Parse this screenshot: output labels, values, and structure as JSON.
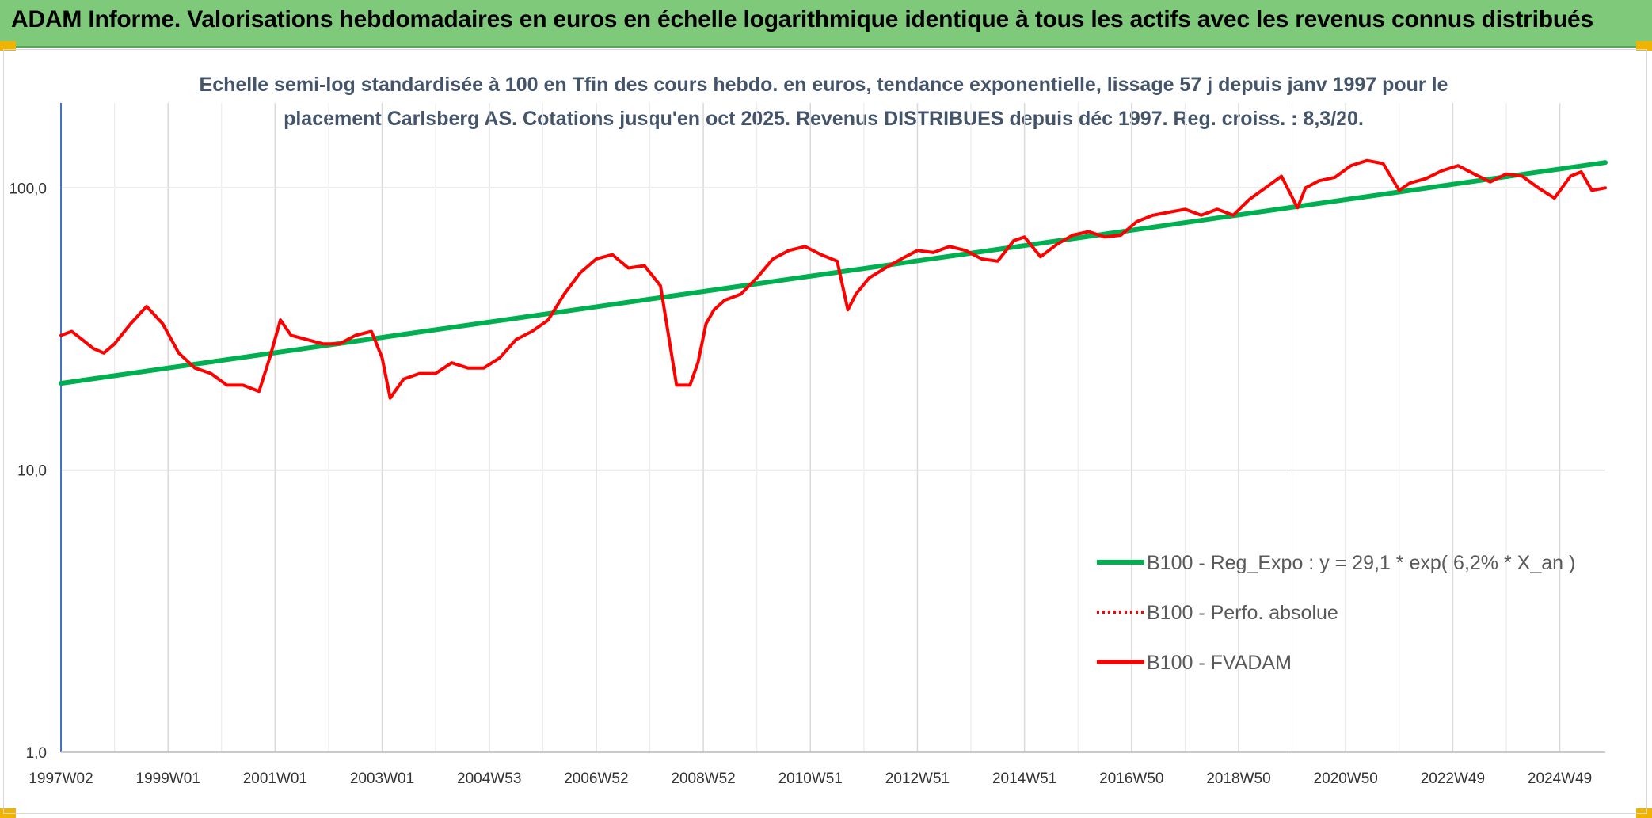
{
  "banner": {
    "title": "ADAM Informe. Valorisations hebdomadaires en euros en échelle logarithmique identique à tous les actifs avec les revenus connus distribués"
  },
  "colors": {
    "banner_bg": "#7fc97a",
    "trend": "#00b050",
    "series": "#ff0000",
    "grid": "#d9d9d9",
    "axis": "#4472c4"
  },
  "chart_data": {
    "type": "line",
    "title_lines": [
      "Echelle semi-log standardisée à 100 en Tfin des cours hebdo. en euros, tendance exponentielle, lissage 57 j depuis janv 1997 pour le",
      "placement Carlsberg AS. Cotations jusqu'en oct 2025. Revenus DISTRIBUES depuis déc 1997. Reg. croiss. : 8,3/20."
    ],
    "y_scale": "log",
    "ylim": [
      1,
      200
    ],
    "y_ticks": [
      {
        "value": 1,
        "label": "1,0"
      },
      {
        "value": 10,
        "label": "10,0"
      },
      {
        "value": 100,
        "label": "100,0"
      }
    ],
    "x_range": [
      1997.0,
      2025.85
    ],
    "x_ticks": [
      {
        "x": 1997.0,
        "label": "1997W02"
      },
      {
        "x": 1999.0,
        "label": "1999W01"
      },
      {
        "x": 2001.0,
        "label": "2001W01"
      },
      {
        "x": 2003.0,
        "label": "2003W01"
      },
      {
        "x": 2005.0,
        "label": "2004W53"
      },
      {
        "x": 2007.0,
        "label": "2006W52"
      },
      {
        "x": 2009.0,
        "label": "2008W52"
      },
      {
        "x": 2011.0,
        "label": "2010W51"
      },
      {
        "x": 2013.0,
        "label": "2012W51"
      },
      {
        "x": 2015.0,
        "label": "2014W51"
      },
      {
        "x": 2017.0,
        "label": "2016W50"
      },
      {
        "x": 2019.0,
        "label": "2018W50"
      },
      {
        "x": 2021.0,
        "label": "2020W50"
      },
      {
        "x": 2023.0,
        "label": "2022W49"
      },
      {
        "x": 2025.0,
        "label": "2024W49"
      }
    ],
    "legend_position": "right",
    "series": [
      {
        "name": "B100 - Reg_Expo : y = 29,1 * exp( 6,2% *  X_an )",
        "style": "solid-thick",
        "color": "#00b050",
        "x": [
          1997.0,
          2025.85
        ],
        "y": [
          20.3,
          123.0
        ]
      },
      {
        "name": "B100 - Perfo. absolue",
        "style": "dotted",
        "color": "#ff0000",
        "x": [],
        "y": []
      },
      {
        "name": "B100 - FVADAM",
        "style": "solid",
        "color": "#ff0000",
        "x": [
          1997.0,
          1997.2,
          1997.4,
          1997.6,
          1997.8,
          1998.0,
          1998.3,
          1998.6,
          1998.9,
          1999.2,
          1999.5,
          1999.8,
          2000.1,
          2000.4,
          2000.7,
          2000.9,
          2001.1,
          2001.3,
          2001.6,
          2001.9,
          2002.2,
          2002.5,
          2002.8,
          2003.0,
          2003.15,
          2003.4,
          2003.7,
          2004.0,
          2004.3,
          2004.6,
          2004.9,
          2005.2,
          2005.5,
          2005.8,
          2006.1,
          2006.4,
          2006.7,
          2007.0,
          2007.3,
          2007.6,
          2007.9,
          2008.2,
          2008.5,
          2008.75,
          2008.9,
          2009.05,
          2009.2,
          2009.4,
          2009.7,
          2010.0,
          2010.3,
          2010.6,
          2010.9,
          2011.2,
          2011.5,
          2011.7,
          2011.85,
          2012.1,
          2012.4,
          2012.7,
          2013.0,
          2013.3,
          2013.6,
          2013.9,
          2014.2,
          2014.5,
          2014.8,
          2015.0,
          2015.3,
          2015.6,
          2015.9,
          2016.2,
          2016.5,
          2016.8,
          2017.1,
          2017.4,
          2017.7,
          2018.0,
          2018.3,
          2018.6,
          2018.9,
          2019.2,
          2019.5,
          2019.8,
          2020.1,
          2020.25,
          2020.5,
          2020.8,
          2021.1,
          2021.4,
          2021.7,
          2022.0,
          2022.2,
          2022.5,
          2022.8,
          2023.1,
          2023.4,
          2023.7,
          2024.0,
          2024.3,
          2024.6,
          2024.9,
          2025.2,
          2025.4,
          2025.6,
          2025.85
        ],
        "y": [
          30,
          31,
          29,
          27,
          26,
          28,
          33,
          38,
          33,
          26,
          23,
          22,
          20,
          20,
          19,
          25,
          34,
          30,
          29,
          28,
          28,
          30,
          31,
          25,
          18,
          21,
          22,
          22,
          24,
          23,
          23,
          25,
          29,
          31,
          34,
          42,
          50,
          56,
          58,
          52,
          53,
          45,
          20,
          20,
          24,
          33,
          37,
          40,
          42,
          48,
          56,
          60,
          62,
          58,
          55,
          37,
          42,
          48,
          52,
          56,
          60,
          59,
          62,
          60,
          56,
          55,
          65,
          67,
          57,
          63,
          68,
          70,
          67,
          68,
          76,
          80,
          82,
          84,
          80,
          84,
          80,
          91,
          100,
          110,
          85,
          100,
          106,
          109,
          120,
          125,
          122,
          98,
          104,
          108,
          115,
          120,
          112,
          105,
          112,
          110,
          100,
          92,
          110,
          114,
          98,
          100
        ]
      }
    ]
  }
}
